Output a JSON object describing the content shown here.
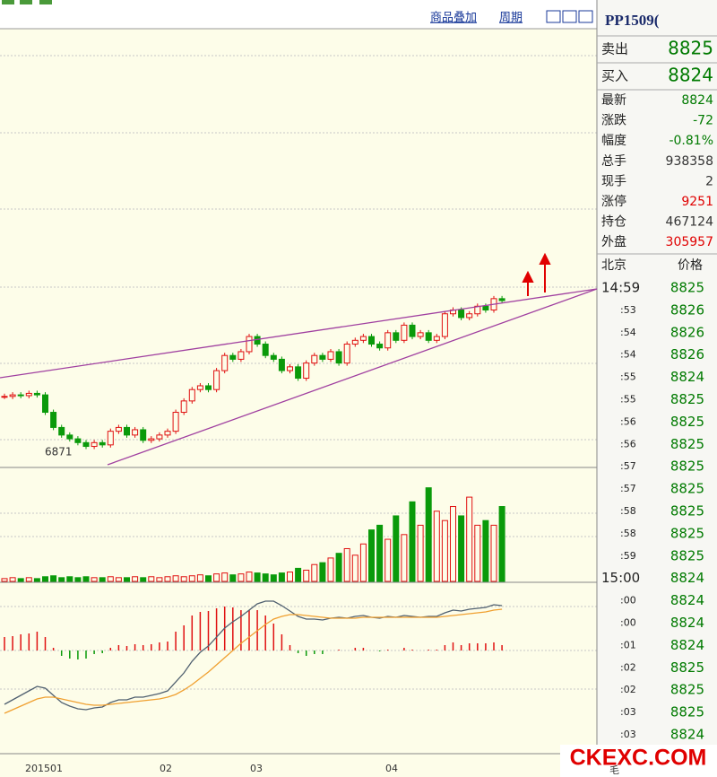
{
  "toolbar": {
    "overlay": "商品叠加",
    "period": "周期"
  },
  "header": {
    "symbol": "PP1509("
  },
  "bid_ask": [
    {
      "label": "卖出",
      "value": 8825
    },
    {
      "label": "买入",
      "value": 8824
    }
  ],
  "quote": [
    {
      "label": "最新",
      "value": 8824,
      "color": "#007a00"
    },
    {
      "label": "涨跌",
      "value": -72,
      "color": "#007a00"
    },
    {
      "label": "幅度",
      "value": "-0.81%",
      "color": "#007a00"
    },
    {
      "label": "总手",
      "value": 938358,
      "color": "#333333"
    },
    {
      "label": "现手",
      "value": 2,
      "color": "#333333"
    },
    {
      "label": "涨停",
      "value": 9251,
      "color": "#e00000"
    },
    {
      "label": "持仓",
      "value": 467124,
      "color": "#333333"
    },
    {
      "label": "外盘",
      "value": 305957,
      "color": "#e00000"
    }
  ],
  "ticks_header": {
    "time": "北京",
    "price": "价格"
  },
  "ticks": {
    "times": [
      "14:59",
      ":53",
      ":54",
      ":54",
      ":55",
      ":55",
      ":56",
      ":56",
      ":57",
      ":57",
      ":58",
      ":58",
      ":59",
      "15:00",
      ":00",
      ":00",
      ":01",
      ":02",
      ":02",
      ":03",
      ":03"
    ],
    "prices": [
      8825,
      8826,
      8826,
      8826,
      8824,
      8825,
      8825,
      8825,
      8825,
      8825,
      8825,
      8825,
      8825,
      8824,
      8824,
      8824,
      8824,
      8825,
      8825,
      8825,
      8824
    ]
  },
  "chart": {
    "ylim": [
      6634,
      12436
    ],
    "low_label": 6871,
    "closes": [
      7560,
      7580,
      7570,
      7600,
      7580,
      7350,
      7150,
      7050,
      7000,
      6950,
      6900,
      6950,
      6920,
      7100,
      7150,
      7050,
      7120,
      6980,
      7000,
      7050,
      7100,
      7350,
      7500,
      7650,
      7700,
      7650,
      7900,
      8100,
      8050,
      8150,
      8350,
      8250,
      8100,
      8050,
      7900,
      7950,
      7800,
      8000,
      8100,
      8050,
      8150,
      8000,
      8250,
      8300,
      8350,
      8250,
      8200,
      8400,
      8300,
      8500,
      8350,
      8400,
      8300,
      8350,
      8650,
      8700,
      8600,
      8650,
      8750,
      8700,
      8850,
      8824
    ],
    "volume_ylim": [
      0,
      115
    ],
    "volumes": [
      3,
      4,
      3,
      4,
      3,
      5,
      6,
      4,
      5,
      4,
      5,
      4,
      4,
      5,
      4,
      4,
      5,
      4,
      5,
      4,
      5,
      6,
      5,
      6,
      7,
      6,
      8,
      9,
      7,
      8,
      10,
      9,
      8,
      7,
      9,
      10,
      14,
      12,
      18,
      20,
      25,
      30,
      35,
      28,
      40,
      55,
      60,
      45,
      70,
      50,
      85,
      60,
      100,
      75,
      65,
      80,
      70,
      90,
      60,
      65,
      60,
      80
    ],
    "macd_ylim": [
      -110,
      70
    ],
    "dif": [
      -60,
      -55,
      -50,
      -45,
      -40,
      -42,
      -50,
      -58,
      -62,
      -65,
      -66,
      -64,
      -63,
      -58,
      -55,
      -55,
      -52,
      -52,
      -50,
      -48,
      -45,
      -35,
      -25,
      -12,
      -2,
      5,
      15,
      25,
      32,
      38,
      45,
      52,
      55,
      55,
      50,
      44,
      38,
      35,
      35,
      34,
      36,
      37,
      36,
      38,
      39,
      37,
      36,
      38,
      37,
      39,
      38,
      37,
      38,
      38,
      42,
      45,
      44,
      46,
      47,
      48,
      51,
      50
    ],
    "dea": [
      -70,
      -66,
      -62,
      -58,
      -54,
      -52,
      -52,
      -54,
      -56,
      -58,
      -60,
      -61,
      -61,
      -60,
      -59,
      -58,
      -57,
      -56,
      -55,
      -54,
      -52,
      -49,
      -44,
      -38,
      -31,
      -24,
      -16,
      -8,
      0,
      8,
      15,
      22,
      29,
      35,
      38,
      40,
      40,
      39,
      38,
      37,
      36,
      36,
      36,
      36,
      37,
      37,
      37,
      37,
      37,
      37,
      37,
      37,
      37,
      37,
      38,
      39,
      40,
      41,
      42,
      43,
      45,
      46
    ],
    "macd": [
      15,
      16,
      18,
      19,
      21,
      15,
      3,
      -6,
      -9,
      -10,
      -9,
      -4,
      -3,
      3,
      6,
      5,
      7,
      6,
      7,
      9,
      10,
      21,
      28,
      39,
      43,
      44,
      47,
      49,
      48,
      45,
      45,
      45,
      39,
      30,
      18,
      6,
      -3,
      -6,
      -4,
      -4,
      0,
      1,
      0,
      3,
      3,
      0,
      -1,
      1,
      0,
      3,
      1,
      0,
      1,
      1,
      6,
      9,
      6,
      8,
      8,
      8,
      9,
      6
    ],
    "x_labels": [
      "201501",
      "02",
      "03",
      "04"
    ]
  },
  "watermark": {
    "text": "CKEXC.COM",
    "fragment": "毛"
  }
}
